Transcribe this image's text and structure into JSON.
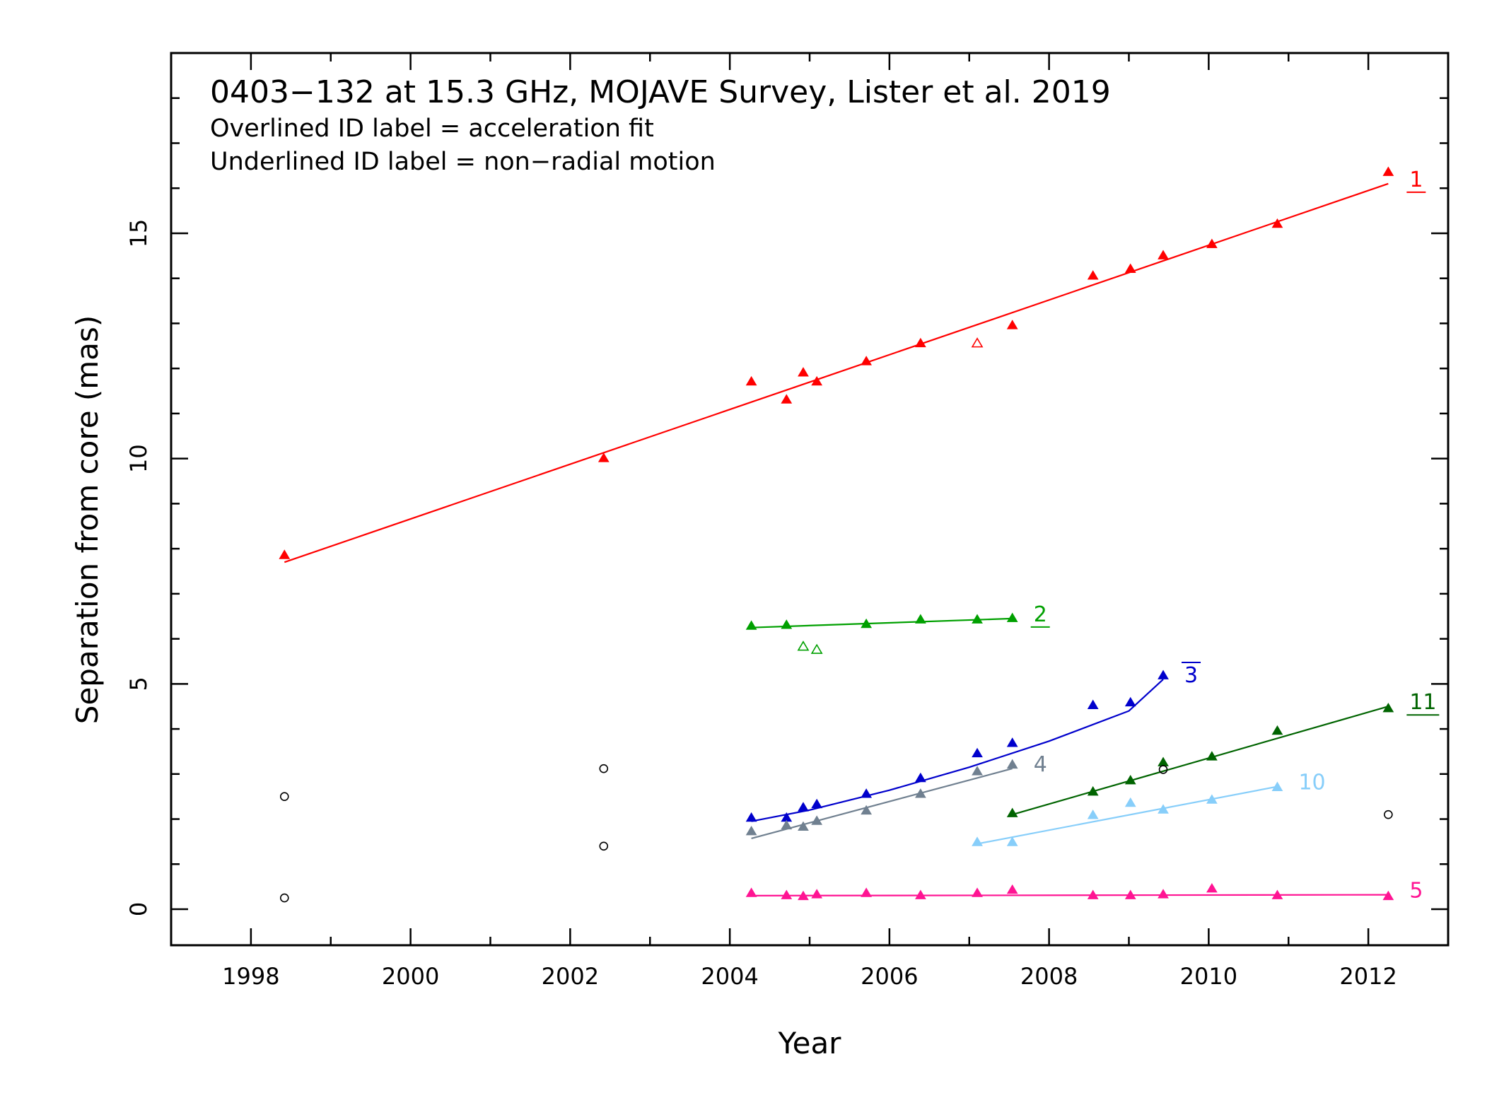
{
  "chart_data": {
    "type": "scatter",
    "title": "0403−132 at 15.3 GHz, MOJAVE Survey, Lister et al. 2019",
    "subtitle_lines": [
      "Overlined ID label = acceleration fit",
      "Underlined ID label = non−radial motion"
    ],
    "xlabel": "Year",
    "ylabel": "Separation from core (mas)",
    "xlim": [
      1997.0,
      2013.0
    ],
    "ylim": [
      -0.8,
      19.0
    ],
    "xticks": [
      1998,
      2000,
      2002,
      2004,
      2006,
      2008,
      2010,
      2012
    ],
    "yticks": [
      0,
      5,
      10,
      15
    ],
    "series": [
      {
        "name": "1",
        "label_decoration": "underline",
        "color": "#ff0000",
        "points": [
          [
            1998.42,
            7.85
          ],
          [
            2002.42,
            10.0
          ],
          [
            2004.27,
            11.7
          ],
          [
            2004.71,
            11.3
          ],
          [
            2004.92,
            11.9
          ],
          [
            2005.09,
            11.7
          ],
          [
            2005.71,
            12.15
          ],
          [
            2006.39,
            12.55
          ],
          [
            2007.54,
            12.95
          ],
          [
            2008.55,
            14.05
          ],
          [
            2009.02,
            14.2
          ],
          [
            2009.43,
            14.5
          ],
          [
            2010.04,
            14.75
          ],
          [
            2010.86,
            15.2
          ],
          [
            2012.25,
            16.35
          ]
        ],
        "open_points": [
          [
            2007.1,
            12.55
          ]
        ],
        "fit": {
          "kind": "linear",
          "x": [
            1998.42,
            2012.25
          ],
          "y": [
            7.7,
            16.1
          ]
        }
      },
      {
        "name": "2",
        "label_decoration": "underline",
        "color": "#00a000",
        "points": [
          [
            2004.27,
            6.28
          ],
          [
            2004.71,
            6.3
          ],
          [
            2005.71,
            6.32
          ],
          [
            2006.39,
            6.42
          ],
          [
            2007.1,
            6.42
          ],
          [
            2007.54,
            6.45
          ]
        ],
        "open_points": [
          [
            2004.92,
            5.82
          ],
          [
            2005.09,
            5.75
          ]
        ],
        "fit": {
          "kind": "linear",
          "x": [
            2004.27,
            2007.54
          ],
          "y": [
            6.25,
            6.45
          ]
        }
      },
      {
        "name": "3",
        "label_decoration": "overline",
        "color": "#0000cc",
        "points": [
          [
            2004.27,
            2.02
          ],
          [
            2004.71,
            2.02
          ],
          [
            2004.92,
            2.25
          ],
          [
            2005.09,
            2.32
          ],
          [
            2005.71,
            2.55
          ],
          [
            2006.39,
            2.9
          ],
          [
            2007.1,
            3.45
          ],
          [
            2007.54,
            3.68
          ],
          [
            2008.55,
            4.52
          ],
          [
            2009.02,
            4.58
          ],
          [
            2009.43,
            5.18
          ]
        ],
        "open_points": [],
        "fit": {
          "kind": "curve",
          "x": [
            2004.27,
            2005.0,
            2006.0,
            2007.0,
            2008.0,
            2009.0,
            2009.43
          ],
          "y": [
            1.95,
            2.2,
            2.64,
            3.15,
            3.73,
            4.4,
            5.1
          ]
        }
      },
      {
        "name": "4",
        "label_decoration": "none",
        "color": "#708090",
        "points": [
          [
            2004.27,
            1.72
          ],
          [
            2004.71,
            1.85
          ],
          [
            2004.92,
            1.82
          ],
          [
            2005.09,
            1.95
          ],
          [
            2005.71,
            2.18
          ],
          [
            2006.39,
            2.55
          ],
          [
            2007.1,
            3.05
          ],
          [
            2007.54,
            3.2
          ]
        ],
        "open_points": [],
        "fit": {
          "kind": "linear",
          "x": [
            2004.27,
            2007.54
          ],
          "y": [
            1.57,
            3.12
          ]
        }
      },
      {
        "name": "11",
        "label_decoration": "underline",
        "color": "#006400",
        "points": [
          [
            2007.54,
            2.12
          ],
          [
            2008.55,
            2.6
          ],
          [
            2009.02,
            2.85
          ],
          [
            2009.43,
            3.25
          ],
          [
            2010.04,
            3.38
          ],
          [
            2010.86,
            3.95
          ],
          [
            2012.25,
            4.45
          ]
        ],
        "open_points": [],
        "fit": {
          "kind": "linear",
          "x": [
            2007.54,
            2012.25
          ],
          "y": [
            2.1,
            4.5
          ]
        }
      },
      {
        "name": "10",
        "label_decoration": "none",
        "color": "#87cefa",
        "points": [
          [
            2007.1,
            1.48
          ],
          [
            2007.54,
            1.48
          ],
          [
            2008.55,
            2.08
          ],
          [
            2009.02,
            2.35
          ],
          [
            2009.43,
            2.2
          ],
          [
            2010.04,
            2.42
          ],
          [
            2010.86,
            2.7
          ]
        ],
        "open_points": [],
        "fit": {
          "kind": "linear",
          "x": [
            2007.1,
            2010.86
          ],
          "y": [
            1.45,
            2.72
          ]
        }
      },
      {
        "name": "5",
        "label_decoration": "none",
        "color": "#ff1493",
        "points": [
          [
            2004.27,
            0.35
          ],
          [
            2004.71,
            0.3
          ],
          [
            2004.92,
            0.28
          ],
          [
            2005.09,
            0.32
          ],
          [
            2005.71,
            0.35
          ],
          [
            2006.39,
            0.3
          ],
          [
            2007.1,
            0.35
          ],
          [
            2007.54,
            0.42
          ],
          [
            2008.55,
            0.3
          ],
          [
            2009.02,
            0.3
          ],
          [
            2009.43,
            0.32
          ],
          [
            2010.04,
            0.45
          ],
          [
            2010.86,
            0.3
          ],
          [
            2012.25,
            0.28
          ]
        ],
        "open_points": [],
        "fit": {
          "kind": "linear",
          "x": [
            2004.27,
            2012.25
          ],
          "y": [
            0.3,
            0.32
          ]
        }
      }
    ],
    "unassigned_points": [
      [
        1998.42,
        2.5
      ],
      [
        1998.42,
        0.25
      ],
      [
        2002.42,
        3.12
      ],
      [
        2002.42,
        1.4
      ],
      [
        2009.43,
        3.1
      ],
      [
        2012.25,
        2.1
      ]
    ],
    "grid": false,
    "legend": "none"
  }
}
